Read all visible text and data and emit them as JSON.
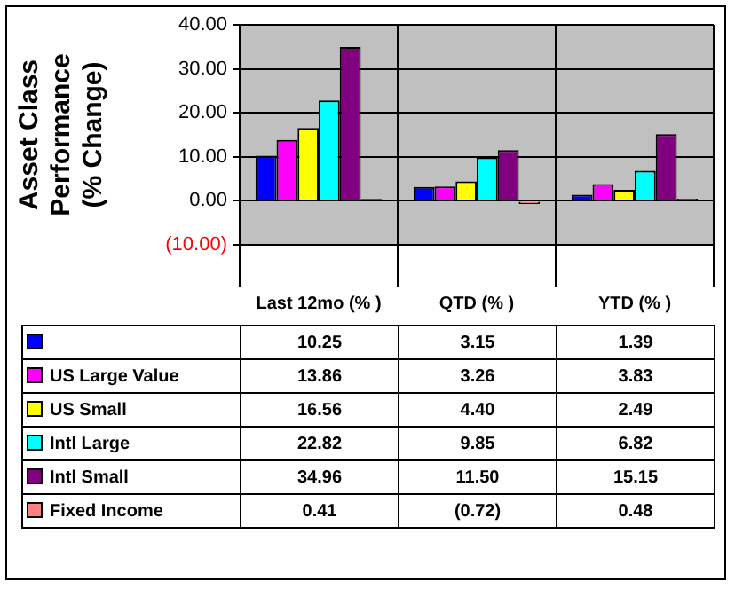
{
  "chart_data": {
    "type": "bar",
    "ylabel": "Asset Class Performance (% Change)",
    "categories": [
      "Last 12mo (% )",
      "QTD (% )",
      "YTD (% )"
    ],
    "series": [
      {
        "color": "#0000ff",
        "values": [
          10.25,
          3.15,
          1.39
        ],
        "value_labels": [
          "10.25",
          "3.15",
          "1.39"
        ]
      },
      {
        "name": "US Large Value",
        "color": "#ff00ff",
        "values": [
          13.86,
          3.26,
          3.83
        ],
        "value_labels": [
          "13.86",
          "3.26",
          "3.83"
        ]
      },
      {
        "name": "US Small",
        "color": "#ffff00",
        "values": [
          16.56,
          4.4,
          2.49
        ],
        "value_labels": [
          "16.56",
          "4.40",
          "2.49"
        ]
      },
      {
        "name": "Intl Large",
        "color": "#00ffff",
        "values": [
          22.82,
          9.85,
          6.82
        ],
        "value_labels": [
          "22.82",
          "9.85",
          "6.82"
        ]
      },
      {
        "name": "Intl Small",
        "color": "#800080",
        "values": [
          34.96,
          11.5,
          15.15
        ],
        "value_labels": [
          "34.96",
          "11.50",
          "15.15"
        ]
      },
      {
        "name": "Fixed Income",
        "color": "#ff8080",
        "values": [
          0.41,
          -0.72,
          0.48
        ],
        "value_labels": [
          "0.41",
          "(0.72)",
          "0.48"
        ]
      }
    ],
    "ylim": [
      -10,
      40
    ],
    "yticks": [
      {
        "value": -10,
        "label": "(10.00)"
      },
      {
        "value": 0,
        "label": "0.00"
      },
      {
        "value": 10,
        "label": "10.00"
      },
      {
        "value": 20,
        "label": "20.00"
      },
      {
        "value": 30,
        "label": "30.00"
      },
      {
        "value": 40,
        "label": "40.00"
      }
    ],
    "grid": true,
    "legend": "bottom"
  }
}
